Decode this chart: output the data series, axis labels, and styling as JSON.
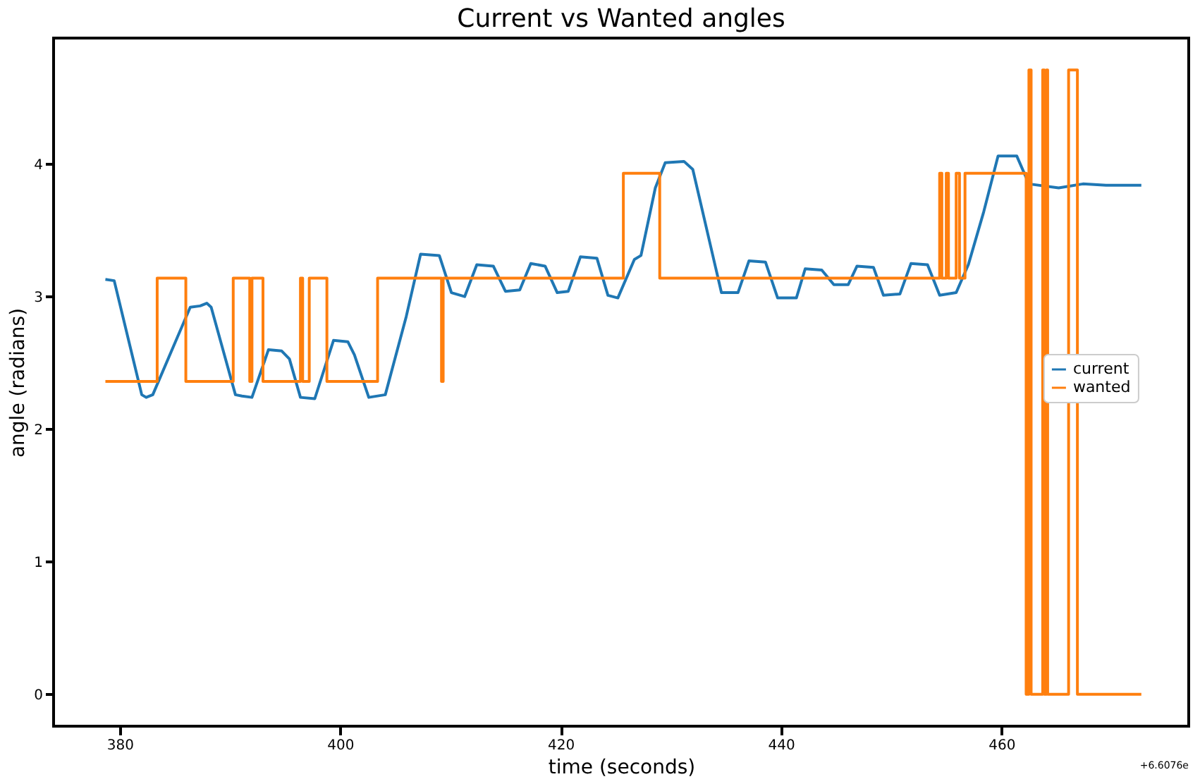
{
  "chart_data": {
    "type": "line",
    "title": "Current vs Wanted angles",
    "xlabel": "time (seconds)",
    "ylabel": "angle (radians)",
    "xlim": [
      374,
      477
    ],
    "ylim": [
      -0.24,
      4.95
    ],
    "xticks": [
      380,
      400,
      420,
      440,
      460
    ],
    "yticks": [
      0,
      1,
      2,
      3,
      4
    ],
    "grid": false,
    "legend": "right",
    "line_style": "solid",
    "marker": "none",
    "annotations": [
      "+6.6076e"
    ],
    "series": [
      {
        "name": "current",
        "color": "#1f77b4",
        "type": "line",
        "x": [
          378.7,
          379.5,
          382.0,
          382.4,
          383.0,
          386.4,
          387.3,
          387.9,
          388.3,
          390.5,
          391.1,
          392.0,
          393.5,
          394.7,
          395.4,
          396.4,
          397.7,
          399.4,
          400.7,
          401.3,
          402.6,
          404.1,
          406.0,
          407.3,
          409.0,
          410.1,
          411.3,
          412.4,
          413.9,
          415.0,
          416.3,
          417.3,
          418.6,
          419.7,
          420.7,
          421.8,
          423.3,
          424.3,
          425.2,
          426.7,
          427.3,
          428.6,
          429.5,
          431.2,
          432.0,
          434.6,
          436.1,
          437.1,
          438.6,
          439.7,
          441.4,
          442.2,
          443.7,
          444.8,
          446.1,
          446.9,
          448.4,
          449.3,
          450.8,
          451.8,
          453.3,
          454.4,
          455.9,
          457.0,
          458.4,
          459.7,
          461.4,
          462.5,
          465.2,
          467.4,
          469.5,
          472.7
        ],
        "values": [
          3.13,
          3.12,
          2.26,
          2.24,
          2.26,
          2.92,
          2.93,
          2.95,
          2.92,
          2.26,
          2.25,
          2.24,
          2.6,
          2.59,
          2.53,
          2.24,
          2.23,
          2.67,
          2.66,
          2.56,
          2.24,
          2.26,
          2.85,
          3.32,
          3.31,
          3.03,
          3.0,
          3.24,
          3.23,
          3.04,
          3.05,
          3.25,
          3.23,
          3.03,
          3.04,
          3.3,
          3.29,
          3.01,
          2.99,
          3.28,
          3.31,
          3.82,
          4.01,
          4.02,
          3.96,
          3.03,
          3.03,
          3.27,
          3.26,
          2.99,
          2.99,
          3.21,
          3.2,
          3.09,
          3.09,
          3.23,
          3.22,
          3.01,
          3.02,
          3.25,
          3.24,
          3.01,
          3.03,
          3.24,
          3.64,
          4.06,
          4.06,
          3.85,
          3.82,
          3.85,
          3.84,
          3.84
        ]
      },
      {
        "name": "wanted",
        "color": "#ff7f0e",
        "type": "step",
        "x": [
          378.7,
          383.4,
          386.0,
          390.3,
          391.8,
          392.0,
          393.0,
          396.4,
          396.6,
          397.2,
          398.8,
          403.4,
          409.2,
          409.35,
          425.7,
          429.0,
          454.4,
          454.6,
          455.0,
          455.2,
          455.9,
          456.2,
          456.7,
          462.25,
          462.5,
          462.7,
          463.75,
          463.9,
          464.1,
          464.2,
          466.1,
          466.9,
          472.7
        ],
        "values": [
          2.36,
          3.14,
          2.36,
          3.14,
          2.36,
          3.14,
          2.36,
          3.14,
          2.36,
          3.14,
          2.36,
          3.14,
          2.36,
          3.14,
          3.93,
          3.14,
          3.93,
          3.14,
          3.93,
          3.14,
          3.93,
          3.14,
          3.93,
          0,
          4.71,
          0,
          4.71,
          0,
          4.71,
          0,
          4.71,
          0,
          0
        ]
      }
    ]
  }
}
